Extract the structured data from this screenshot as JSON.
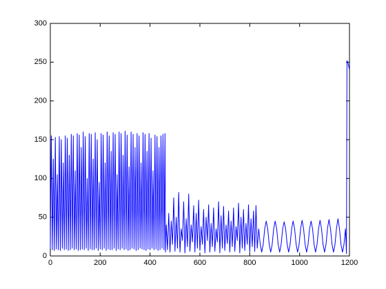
{
  "chart_data": {
    "type": "line",
    "xlim": [
      0,
      1200
    ],
    "xticks": [
      0,
      200,
      400,
      600,
      800,
      1000,
      1200
    ],
    "ylim": [
      0,
      300
    ],
    "yticks": [
      0,
      50,
      100,
      150,
      200,
      250,
      300
    ],
    "grid": false,
    "x": [
      0,
      4,
      8,
      12,
      16,
      20,
      24,
      28,
      32,
      36,
      40,
      44,
      48,
      52,
      56,
      60,
      64,
      68,
      72,
      76,
      80,
      84,
      88,
      92,
      96,
      100,
      104,
      108,
      112,
      116,
      120,
      124,
      128,
      132,
      136,
      140,
      144,
      148,
      152,
      156,
      160,
      164,
      168,
      172,
      176,
      180,
      184,
      188,
      192,
      196,
      200,
      204,
      208,
      212,
      216,
      220,
      224,
      228,
      232,
      236,
      240,
      244,
      248,
      252,
      256,
      260,
      264,
      268,
      272,
      276,
      280,
      284,
      288,
      292,
      296,
      300,
      304,
      308,
      312,
      316,
      320,
      324,
      328,
      332,
      336,
      340,
      344,
      348,
      352,
      356,
      360,
      364,
      368,
      372,
      376,
      380,
      384,
      388,
      392,
      396,
      400,
      404,
      408,
      412,
      416,
      420,
      424,
      428,
      432,
      436,
      440,
      444,
      448,
      452,
      456,
      460,
      462,
      465,
      470,
      475,
      480,
      485,
      490,
      495,
      500,
      505,
      510,
      515,
      520,
      525,
      530,
      535,
      540,
      545,
      550,
      555,
      560,
      565,
      570,
      575,
      580,
      585,
      590,
      595,
      600,
      605,
      610,
      615,
      620,
      625,
      630,
      635,
      640,
      645,
      650,
      655,
      660,
      665,
      670,
      675,
      680,
      685,
      690,
      695,
      700,
      705,
      710,
      715,
      720,
      725,
      730,
      735,
      740,
      745,
      750,
      755,
      760,
      765,
      770,
      775,
      780,
      785,
      790,
      795,
      800,
      805,
      810,
      815,
      820,
      825,
      830,
      836,
      842,
      848,
      854,
      860,
      866,
      872,
      878,
      884,
      890,
      896,
      902,
      908,
      914,
      920,
      926,
      932,
      938,
      944,
      950,
      956,
      962,
      968,
      974,
      980,
      986,
      992,
      998,
      1004,
      1010,
      1016,
      1022,
      1028,
      1034,
      1040,
      1046,
      1052,
      1058,
      1064,
      1070,
      1076,
      1082,
      1088,
      1094,
      1100,
      1106,
      1112,
      1118,
      1124,
      1130,
      1136,
      1142,
      1148,
      1154,
      1160,
      1166,
      1172,
      1178,
      1184,
      1188,
      1190,
      1195,
      1200
    ],
    "series": [
      {
        "color": "#0000ff",
        "values": [
          10,
          155,
          8,
          125,
          7,
          153,
          9,
          105,
          8,
          154,
          7,
          150,
          10,
          120,
          8,
          155,
          9,
          152,
          7,
          130,
          8,
          157,
          10,
          155,
          8,
          110,
          9,
          158,
          7,
          156,
          8,
          140,
          9,
          160,
          8,
          154,
          10,
          100,
          7,
          158,
          9,
          157,
          8,
          125,
          8,
          159,
          10,
          150,
          7,
          95,
          9,
          158,
          8,
          156,
          10,
          120,
          7,
          160,
          9,
          155,
          8,
          135,
          8,
          159,
          10,
          157,
          7,
          105,
          9,
          160,
          8,
          158,
          10,
          130,
          8,
          161,
          9,
          156,
          7,
          115,
          8,
          160,
          10,
          157,
          9,
          140,
          7,
          158,
          8,
          155,
          10,
          120,
          9,
          159,
          8,
          157,
          7,
          135,
          9,
          158,
          8,
          152,
          10,
          110,
          8,
          156,
          9,
          154,
          7,
          140,
          8,
          155,
          10,
          157,
          8,
          158,
          5,
          40,
          8,
          55,
          5,
          45,
          15,
          75,
          6,
          50,
          10,
          82,
          5,
          35,
          20,
          70,
          4,
          48,
          12,
          80,
          6,
          40,
          18,
          65,
          5,
          55,
          10,
          72,
          7,
          38,
          15,
          60,
          4,
          50,
          20,
          66,
          5,
          42,
          12,
          62,
          6,
          35,
          18,
          70,
          4,
          52,
          10,
          64,
          7,
          40,
          16,
          58,
          5,
          45,
          12,
          62,
          6,
          38,
          20,
          68,
          4,
          50,
          10,
          60,
          7,
          42,
          15,
          66,
          5,
          48,
          12,
          58,
          6,
          65,
          10,
          35,
          15,
          5,
          15,
          35,
          45,
          35,
          15,
          5,
          15,
          35,
          45,
          35,
          15,
          5,
          15,
          35,
          44,
          35,
          15,
          5,
          15,
          35,
          45,
          35,
          15,
          5,
          15,
          35,
          46,
          35,
          15,
          5,
          15,
          35,
          45,
          35,
          15,
          5,
          15,
          35,
          46,
          35,
          15,
          5,
          15,
          36,
          47,
          35,
          15,
          5,
          15,
          36,
          48,
          35,
          15,
          5,
          15,
          35,
          3,
          252,
          248,
          240
        ]
      }
    ]
  }
}
